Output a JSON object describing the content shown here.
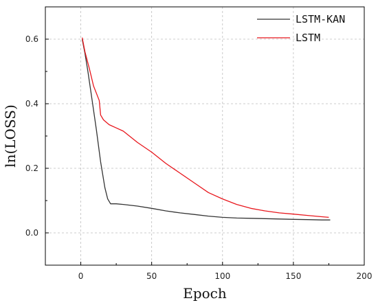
{
  "chart_data": {
    "type": "line",
    "title": "",
    "xlabel": "Epoch",
    "ylabel": "ln(LOSS)",
    "xlim": [
      -25,
      200
    ],
    "ylim": [
      -0.1,
      0.7
    ],
    "xticks": [
      0,
      50,
      100,
      150,
      200
    ],
    "yticks": [
      0.0,
      0.2,
      0.4,
      0.6
    ],
    "xtick_labels": [
      "0",
      "50",
      "100",
      "150",
      "200"
    ],
    "ytick_labels": [
      "0.0",
      "0.2",
      "0.4",
      "0.6"
    ],
    "grid": true,
    "legend_position": "top-right",
    "series": [
      {
        "name": "LSTM-KAN",
        "color": "#333333",
        "x": [
          1,
          3,
          5,
          8,
          11,
          14,
          17,
          19,
          21,
          25,
          30,
          40,
          50,
          60,
          70,
          80,
          90,
          100,
          110,
          120,
          130,
          140,
          150,
          160,
          170,
          176
        ],
        "y": [
          0.6,
          0.555,
          0.5,
          0.41,
          0.32,
          0.22,
          0.14,
          0.105,
          0.09,
          0.09,
          0.088,
          0.083,
          0.076,
          0.068,
          0.062,
          0.057,
          0.052,
          0.048,
          0.046,
          0.045,
          0.044,
          0.043,
          0.042,
          0.041,
          0.04,
          0.04
        ]
      },
      {
        "name": "LSTM",
        "color": "#e8161c",
        "x": [
          1,
          3,
          6,
          9,
          13,
          14,
          16,
          20,
          25,
          30,
          40,
          50,
          60,
          70,
          80,
          90,
          100,
          110,
          120,
          130,
          140,
          150,
          160,
          170,
          175
        ],
        "y": [
          0.605,
          0.56,
          0.51,
          0.455,
          0.41,
          0.365,
          0.35,
          0.335,
          0.325,
          0.315,
          0.28,
          0.25,
          0.215,
          0.185,
          0.155,
          0.125,
          0.105,
          0.088,
          0.076,
          0.068,
          0.062,
          0.058,
          0.054,
          0.05,
          0.048
        ]
      }
    ]
  }
}
